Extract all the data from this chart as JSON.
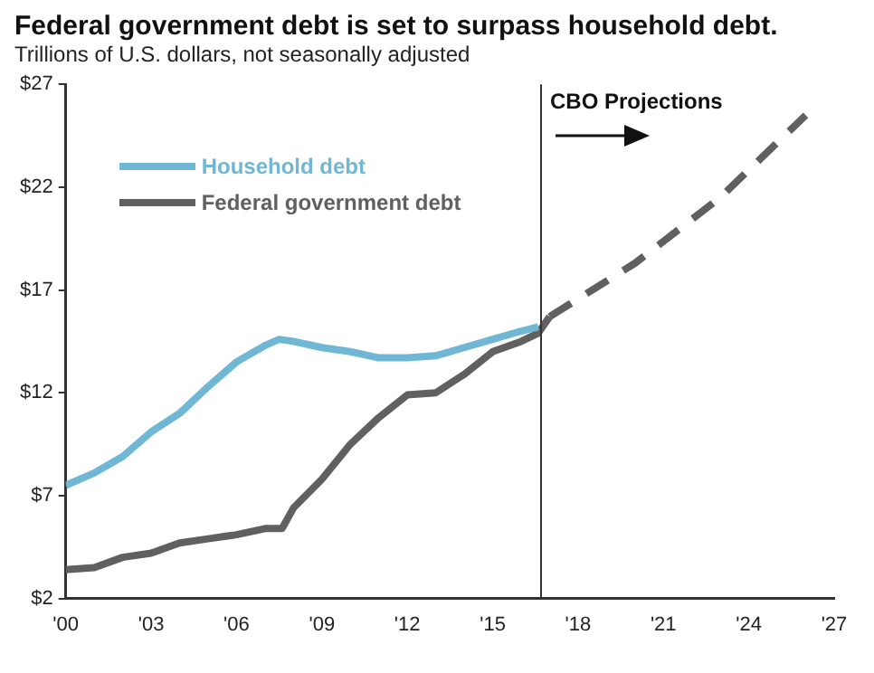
{
  "chart_data": {
    "type": "line",
    "title": "Federal government debt is set to surpass household debt.",
    "subtitle": "Trillions of U.S. dollars, not seasonally adjusted",
    "series": [
      {
        "name": "Household debt",
        "color": "#6fb7d4",
        "x": [
          2000,
          2001,
          2002,
          2003,
          2004,
          2005,
          2006,
          2007,
          2007.5,
          2008,
          2009,
          2010,
          2011,
          2012,
          2013,
          2014,
          2015,
          2016,
          2016.6
        ],
        "values": [
          7.5,
          8.1,
          8.9,
          10.1,
          11.0,
          12.3,
          13.5,
          14.3,
          14.6,
          14.5,
          14.2,
          14.0,
          13.7,
          13.7,
          13.8,
          14.2,
          14.6,
          15.0,
          15.2
        ]
      },
      {
        "name": "Federal government debt",
        "color": "#606060",
        "x": [
          2000,
          2001,
          2002,
          2003,
          2004,
          2005,
          2006,
          2007,
          2007.6,
          2008,
          2009,
          2010,
          2011,
          2012,
          2013,
          2014,
          2015,
          2016,
          2016.6,
          2017
        ],
        "values": [
          3.4,
          3.5,
          4.0,
          4.2,
          4.7,
          4.9,
          5.1,
          5.4,
          5.4,
          6.4,
          7.8,
          9.5,
          10.8,
          11.9,
          12.0,
          12.9,
          14.0,
          14.5,
          14.9,
          15.7
        ]
      },
      {
        "color": "#606060",
        "line_style": "dashed",
        "x": [
          2017,
          2020,
          2023,
          2026
        ],
        "values": [
          15.7,
          18.3,
          21.5,
          25.5
        ]
      }
    ],
    "xlim": [
      2000,
      2027
    ],
    "xticks": [
      {
        "value": 2000,
        "label": "'00"
      },
      {
        "value": 2003,
        "label": "'03"
      },
      {
        "value": 2006,
        "label": "'06"
      },
      {
        "value": 2009,
        "label": "'09"
      },
      {
        "value": 2012,
        "label": "'12"
      },
      {
        "value": 2015,
        "label": "'15"
      },
      {
        "value": 2018,
        "label": "'18"
      },
      {
        "value": 2021,
        "label": "'21"
      },
      {
        "value": 2024,
        "label": "'24"
      },
      {
        "value": 2027,
        "label": "'27"
      }
    ],
    "ylim": [
      2,
      27
    ],
    "yticks": [
      {
        "value": 2,
        "label": "$2"
      },
      {
        "value": 7,
        "label": "$7"
      },
      {
        "value": 12,
        "label": "$12"
      },
      {
        "value": 17,
        "label": "$17"
      },
      {
        "value": 22,
        "label": "$22"
      },
      {
        "value": 27,
        "label": "$27"
      }
    ],
    "ref_lines": [
      {
        "axis": "x",
        "value": 2016.7,
        "label": "CBO Projections",
        "color": "#333333"
      }
    ],
    "grid": false,
    "legend": "top left",
    "marker": "none",
    "line_style": "solid"
  }
}
